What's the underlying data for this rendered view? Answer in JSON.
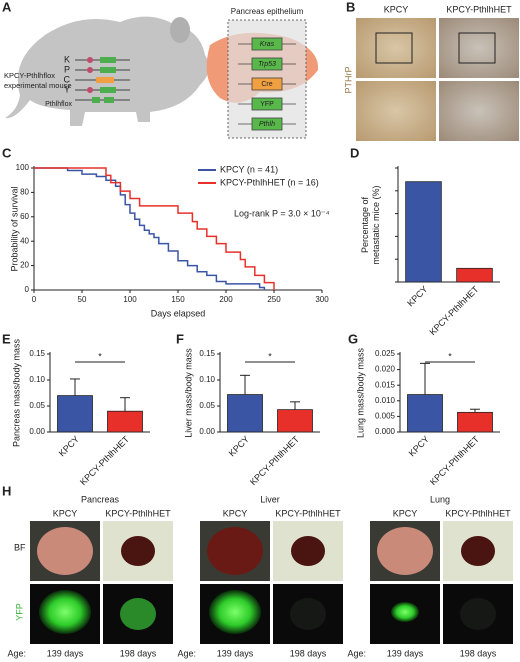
{
  "panel_a": {
    "letter": "A",
    "mouse_label": [
      "KPCY-Pthlhflox",
      "experimental mouse"
    ],
    "alleles": [
      "K",
      "P",
      "C",
      "Y",
      "Pthlhflox"
    ],
    "box_title": "Pancreas epithelium",
    "genes": [
      "Kras",
      "Trp53",
      "Cre",
      "YFP",
      "Pthlh"
    ]
  },
  "panel_b": {
    "letter": "B",
    "columns": [
      "KPCY",
      "KPCY-PthlhHET"
    ],
    "stain": "PTHrP"
  },
  "panel_h": {
    "letter": "H",
    "rows": [
      "BF",
      "YFP"
    ],
    "groups": [
      {
        "title": "Pancreas",
        "columns": [
          "KPCY",
          "KPCY-PthlhHET"
        ],
        "age_label": "Age:",
        "ages": [
          "139 days",
          "198 days"
        ]
      },
      {
        "title": "Liver",
        "columns": [
          "KPCY",
          "KPCY-PthlhHET"
        ],
        "age_label": "Age:",
        "ages": [
          "139 days",
          "198 days"
        ]
      },
      {
        "title": "Lung",
        "columns": [
          "KPCY",
          "KPCY-PthlhHET"
        ],
        "age_label": "Age:",
        "ages": [
          "139 days",
          "198 days"
        ]
      }
    ]
  },
  "chart_data": [
    {
      "type": "line",
      "step": true,
      "panel": "C",
      "xlabel": "Days elapsed",
      "ylabel": "Probability of survival",
      "annotation": "Log-rank P = 3.0 × 10⁻⁴",
      "xlim": [
        0,
        300
      ],
      "xticks": [
        0,
        50,
        100,
        150,
        200,
        250,
        300
      ],
      "ylim": [
        0,
        100
      ],
      "yticks": [
        0,
        20,
        40,
        60,
        80,
        100
      ],
      "series": [
        {
          "name": "KPCY (n = 41)",
          "color": "#3b55a5",
          "x": [
            0,
            35,
            50,
            65,
            75,
            85,
            90,
            95,
            100,
            105,
            110,
            115,
            120,
            125,
            130,
            140,
            150,
            160,
            170,
            180,
            190,
            200,
            235,
            240
          ],
          "values": [
            100,
            98,
            95,
            93,
            90,
            85,
            78,
            70,
            63,
            58,
            53,
            49,
            46,
            43,
            38,
            32,
            24,
            20,
            15,
            12,
            7,
            5,
            2,
            0
          ]
        },
        {
          "name": "KPCY-PthlhHET (n = 16)",
          "color": "#e8302a",
          "x": [
            0,
            75,
            80,
            90,
            100,
            110,
            150,
            165,
            170,
            180,
            190,
            200,
            215,
            220,
            230,
            240,
            250
          ],
          "values": [
            100,
            94,
            88,
            81,
            75,
            69,
            63,
            56,
            50,
            44,
            38,
            31,
            25,
            19,
            12,
            6,
            0
          ]
        }
      ]
    },
    {
      "type": "bar",
      "panel": "D",
      "ylabel": [
        "Percentage of",
        "metastatic mice (%)"
      ],
      "show_ytick_labels": false,
      "categories": [
        "KPCY",
        "KPCY-PthlhHET"
      ],
      "values": [
        44,
        6
      ],
      "colors": [
        "#3b55a5",
        "#e8302a"
      ],
      "ylim": [
        0,
        50
      ],
      "yticks": [
        0,
        10,
        20,
        30,
        40,
        50
      ]
    },
    {
      "type": "bar",
      "panel": "E",
      "ylabel": [
        "Pancreas mass/body mass"
      ],
      "annotation": "*",
      "categories": [
        "KPCY",
        "KPCY-PthlhHET"
      ],
      "values": [
        0.07,
        0.04
      ],
      "errors": [
        0.032,
        0.026
      ],
      "colors": [
        "#3b55a5",
        "#e8302a"
      ],
      "ylim": [
        0,
        0.15
      ],
      "yticks": [
        {
          "value": 0,
          "label": "0.00"
        },
        {
          "value": 0.05,
          "label": "0.05"
        },
        {
          "value": 0.1,
          "label": "0.10"
        },
        {
          "value": 0.15,
          "label": "0.15"
        }
      ]
    },
    {
      "type": "bar",
      "panel": "F",
      "ylabel": [
        "Liver mass/body mass"
      ],
      "annotation": "*",
      "categories": [
        "KPCY",
        "KPCY-PthlhHET"
      ],
      "values": [
        0.072,
        0.043
      ],
      "errors": [
        0.037,
        0.015
      ],
      "colors": [
        "#3b55a5",
        "#e8302a"
      ],
      "ylim": [
        0,
        0.15
      ],
      "yticks": [
        {
          "value": 0,
          "label": "0.00"
        },
        {
          "value": 0.05,
          "label": "0.05"
        },
        {
          "value": 0.1,
          "label": "0.10"
        },
        {
          "value": 0.15,
          "label": "0.15"
        }
      ]
    },
    {
      "type": "bar",
      "panel": "G",
      "ylabel": [
        "Lung mass/body mass"
      ],
      "annotation": "*",
      "categories": [
        "KPCY",
        "KPCY-PthlhHET"
      ],
      "values": [
        0.012,
        0.0063
      ],
      "errors": [
        0.01,
        0.001
      ],
      "colors": [
        "#3b55a5",
        "#e8302a"
      ],
      "ylim": [
        0,
        0.025
      ],
      "yticks": [
        {
          "value": 0,
          "label": "0.000"
        },
        {
          "value": 0.005,
          "label": "0.005"
        },
        {
          "value": 0.01,
          "label": "0.010"
        },
        {
          "value": 0.015,
          "label": "0.015"
        },
        {
          "value": 0.02,
          "label": "0.020"
        },
        {
          "value": 0.025,
          "label": "0.025"
        }
      ]
    }
  ]
}
